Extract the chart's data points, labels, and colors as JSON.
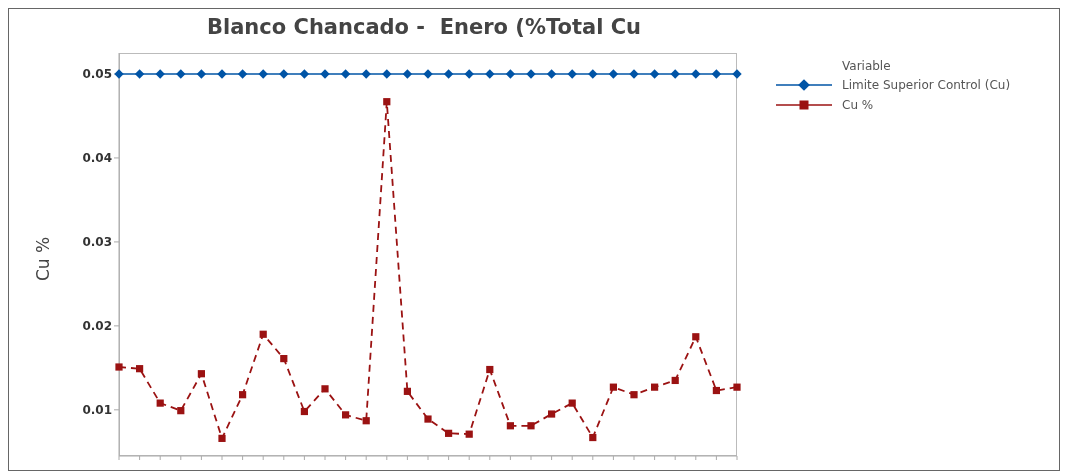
{
  "chart_data": {
    "type": "line",
    "title": "Blanco Chancado -  Enero (%Total Cu",
    "ylabel": "Cu %",
    "legend_title": "Variable",
    "legend": "top right",
    "grid": false,
    "categories": [
      null,
      null,
      null,
      null,
      null,
      null,
      null,
      null,
      null,
      null,
      null,
      null,
      null,
      null,
      null,
      null,
      null,
      null,
      null,
      null,
      null,
      null,
      null,
      null,
      null,
      null,
      null,
      null,
      null,
      null,
      null
    ],
    "ylim": [
      0.0045,
      0.0525
    ],
    "yticks": [
      0.01,
      0.02,
      0.03,
      0.04,
      0.05
    ],
    "series": [
      {
        "name": "Limite Superior Control (Cu)",
        "color": "#0054a6",
        "marker": "diamond",
        "line_style": "solid",
        "values": [
          0.05,
          0.05,
          0.05,
          0.05,
          0.05,
          0.05,
          0.05,
          0.05,
          0.05,
          0.05,
          0.05,
          0.05,
          0.05,
          0.05,
          0.05,
          0.05,
          0.05,
          0.05,
          0.05,
          0.05,
          0.05,
          0.05,
          0.05,
          0.05,
          0.05,
          0.05,
          0.05,
          0.05,
          0.05,
          0.05,
          0.05
        ]
      },
      {
        "name": "Cu %",
        "color": "#9b1212",
        "marker": "square",
        "line_style": "dashed",
        "values": [
          0.0151,
          0.0149,
          0.0108,
          0.0099,
          0.0143,
          0.0066,
          0.0118,
          0.019,
          0.0161,
          0.0098,
          0.0125,
          0.0094,
          0.0087,
          0.0467,
          0.0122,
          0.0089,
          0.0072,
          0.0071,
          0.0148,
          0.0081,
          0.0081,
          0.0095,
          0.0108,
          0.0067,
          0.0127,
          0.0118,
          0.0127,
          0.0135,
          0.0187,
          0.0123,
          0.0127
        ]
      }
    ]
  }
}
